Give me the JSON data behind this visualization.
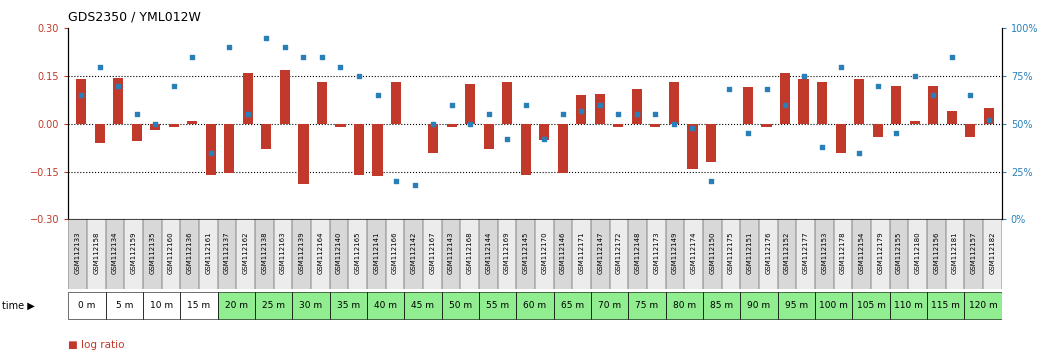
{
  "title": "GDS2350 / YML012W",
  "gsm_labels": [
    "GSM112133",
    "GSM112158",
    "GSM112134",
    "GSM112159",
    "GSM112135",
    "GSM112160",
    "GSM112136",
    "GSM112161",
    "GSM112137",
    "GSM112162",
    "GSM112138",
    "GSM112163",
    "GSM112139",
    "GSM112164",
    "GSM112140",
    "GSM112165",
    "GSM112141",
    "GSM112166",
    "GSM112142",
    "GSM112167",
    "GSM112143",
    "GSM112168",
    "GSM112144",
    "GSM112169",
    "GSM112145",
    "GSM112170",
    "GSM112146",
    "GSM112171",
    "GSM112147",
    "GSM112172",
    "GSM112148",
    "GSM112173",
    "GSM112149",
    "GSM112174",
    "GSM112150",
    "GSM112175",
    "GSM112151",
    "GSM112176",
    "GSM112152",
    "GSM112177",
    "GSM112153",
    "GSM112178",
    "GSM112154",
    "GSM112179",
    "GSM112155",
    "GSM112180",
    "GSM112156",
    "GSM112181",
    "GSM112157",
    "GSM112182"
  ],
  "time_labels": [
    "0 m",
    "5 m",
    "10 m",
    "15 m",
    "20 m",
    "25 m",
    "30 m",
    "35 m",
    "40 m",
    "45 m",
    "50 m",
    "55 m",
    "60 m",
    "65 m",
    "70 m",
    "75 m",
    "80 m",
    "85 m",
    "90 m",
    "95 m",
    "100 m",
    "105 m",
    "110 m",
    "115 m",
    "120 m"
  ],
  "log_ratio": [
    0.14,
    -0.06,
    0.145,
    -0.055,
    -0.02,
    -0.01,
    0.01,
    -0.16,
    -0.155,
    0.16,
    -0.08,
    0.17,
    -0.19,
    0.13,
    -0.01,
    -0.16,
    -0.165,
    0.13,
    0.0,
    -0.09,
    -0.01,
    0.125,
    -0.08,
    0.13,
    -0.16,
    -0.05,
    -0.155,
    0.09,
    0.095,
    -0.01,
    0.11,
    -0.01,
    0.13,
    -0.14,
    -0.12,
    0.0,
    0.115,
    -0.01,
    0.16,
    0.14,
    0.13,
    -0.09,
    0.14,
    -0.04,
    0.12,
    0.01,
    0.12,
    0.04,
    -0.04,
    0.05
  ],
  "percentile_rank": [
    65,
    80,
    70,
    55,
    50,
    70,
    85,
    35,
    90,
    55,
    95,
    90,
    85,
    85,
    80,
    75,
    65,
    20,
    18,
    50,
    60,
    50,
    55,
    42,
    60,
    42,
    55,
    57,
    60,
    55,
    55,
    55,
    50,
    48,
    20,
    68,
    45,
    68,
    60,
    75,
    38,
    80,
    35,
    70,
    45,
    75,
    65,
    85,
    65,
    52
  ],
  "bar_color": "#C0392B",
  "dot_color": "#2980B9",
  "ylim": [
    -0.3,
    0.3
  ],
  "y2lim": [
    0,
    100
  ],
  "dotted_lines": [
    0.15,
    0.0,
    -0.15
  ],
  "background_color": "#ffffff",
  "gsm_bg_color": "#e8e8e8",
  "time_bg_white": "#ffffff",
  "time_bg_green": "#90EE90",
  "time_white_count": 4,
  "n_time": 25
}
